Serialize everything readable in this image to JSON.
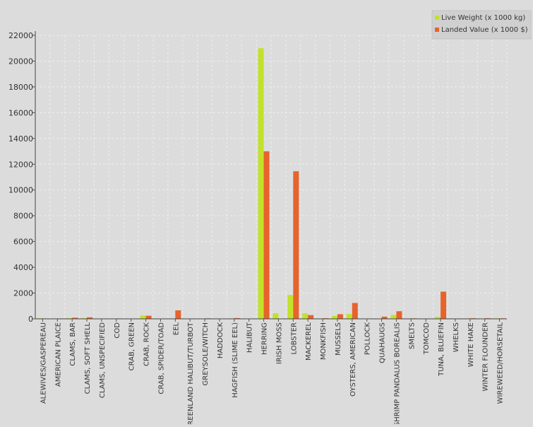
{
  "chart_data": {
    "type": "bar",
    "title": "",
    "xlabel": "",
    "ylabel": "",
    "ylim": [
      0,
      22000
    ],
    "yticks": [
      0,
      2000,
      4000,
      6000,
      8000,
      10000,
      12000,
      14000,
      16000,
      18000,
      20000,
      22000
    ],
    "grid": true,
    "legend_position": "top-right",
    "categories": [
      "ALEWIVES/GASPEREAU",
      "AMERICAN PLAICE",
      "CLAMS, BAR",
      "CLAMS, SOFT SHELL",
      "CLAMS, UNSPECIFIED",
      "COD",
      "CRAB, GREEN",
      "CRAB, ROCK",
      "CRAB, SPIDER/TOAD",
      "EEL",
      "GREENLAND HALIBUT/TURBOT",
      "GREYSOLE/WITCH",
      "HADDOCK",
      "HAGFISH (SLIME EEL)",
      "HALIBUT",
      "HERRING",
      "IRISH MOSS",
      "LOBSTER",
      "MACKEREL",
      "MONKFISH",
      "MUSSELS",
      "OYSTERS, AMERICAN",
      "POLLOCK",
      "QUAHAUGS",
      "SHRIMP PANDALUS BOREALIS",
      "SMELTS",
      "TOMCOD",
      "TUNA, BLUEFIN",
      "WHELKS",
      "WHITE HAKE",
      "WINTER FLOUNDER",
      "WIREWEED/HORSETAIL"
    ],
    "series": [
      {
        "name": "Live Weight (x 1000 kg)",
        "color": "#c2e12b",
        "values": [
          40,
          20,
          50,
          60,
          15,
          20,
          10,
          250,
          20,
          30,
          5,
          20,
          10,
          30,
          5,
          21000,
          430,
          1850,
          430,
          30,
          230,
          370,
          10,
          20,
          300,
          30,
          10,
          150,
          30,
          30,
          20,
          40
        ]
      },
      {
        "name": "Landed Value (x 1000 $)",
        "color": "#e8622c",
        "values": [
          30,
          30,
          90,
          120,
          20,
          30,
          10,
          240,
          20,
          660,
          5,
          40,
          20,
          60,
          10,
          13000,
          20,
          11450,
          290,
          50,
          360,
          1230,
          10,
          170,
          590,
          40,
          10,
          2110,
          30,
          50,
          50,
          40
        ]
      }
    ]
  }
}
